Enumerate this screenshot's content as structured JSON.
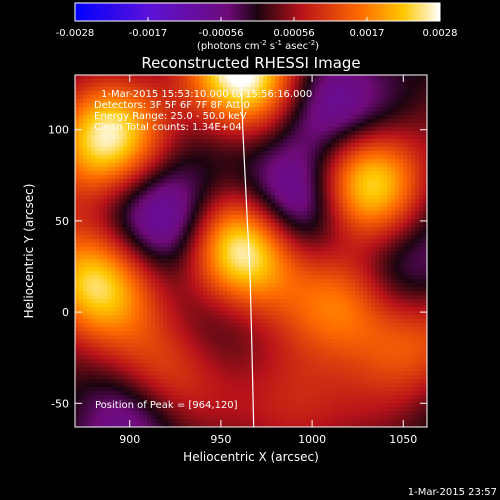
{
  "chart_data": {
    "type": "heatmap",
    "title": "Reconstructed RHESSI Image",
    "xlabel": "Heliocentric X (arcsec)",
    "ylabel": "Heliocentric Y (arcsec)",
    "xlim": [
      870,
      1063
    ],
    "ylim": [
      -63,
      130
    ],
    "x_ticks": [
      900,
      950,
      1000,
      1050
    ],
    "y_ticks": [
      -50,
      0,
      50,
      100
    ],
    "colorbar": {
      "min": -0.0028,
      "max": 0.0028,
      "ticks": [
        "-0.0028",
        "-0.0017",
        "-0.00056",
        "0.00056",
        "0.0017",
        "0.0028"
      ],
      "label": "(photons cm",
      "label_sup1": "-2",
      "label_mid": " s",
      "label_sup2": "-1",
      "label_tail": " asec",
      "label_sup3": "-2",
      "label_end": ")"
    },
    "annotations": [
      "1-Mar-2015 15:53:10.000 to 15:56:16.000",
      "Detectors: 3F 5F 6F 7F 8F   Att 0",
      "Energy Range: 25.0 - 50.0 keV",
      "Clean     Total counts: 1.34E+04"
    ],
    "peak_label": "Position of Peak = [964,120]",
    "peak": [
      964,
      120
    ],
    "sources": [
      {
        "x": 962,
        "y": 130,
        "amp": 1.0
      },
      {
        "x": 962,
        "y": 35,
        "amp": 1.0
      },
      {
        "x": 886,
        "y": 95,
        "amp": 0.85
      },
      {
        "x": 880,
        "y": 15,
        "amp": 0.8
      },
      {
        "x": 1030,
        "y": 72,
        "amp": 0.82
      },
      {
        "x": 1020,
        "y": 5,
        "amp": 0.6
      },
      {
        "x": 915,
        "y": -35,
        "amp": 0.45
      },
      {
        "x": 1055,
        "y": -20,
        "amp": 0.4
      },
      {
        "x": 990,
        "y": -50,
        "amp": 0.35
      },
      {
        "x": 925,
        "y": 50,
        "amp": -0.45
      },
      {
        "x": 990,
        "y": 60,
        "amp": -0.45
      },
      {
        "x": 1005,
        "y": 110,
        "amp": -0.4
      },
      {
        "x": 900,
        "y": -55,
        "amp": -0.3
      },
      {
        "x": 1045,
        "y": 20,
        "amp": -0.3
      }
    ],
    "limb_curve": [
      [
        961,
        130
      ],
      [
        962,
        100
      ],
      [
        964,
        60
      ],
      [
        966,
        20
      ],
      [
        967,
        -20
      ],
      [
        968,
        -63
      ]
    ]
  },
  "footer_date": "1-Mar-2015 23:57",
  "colors": {
    "background": "#000000",
    "text": "#ffffff"
  }
}
